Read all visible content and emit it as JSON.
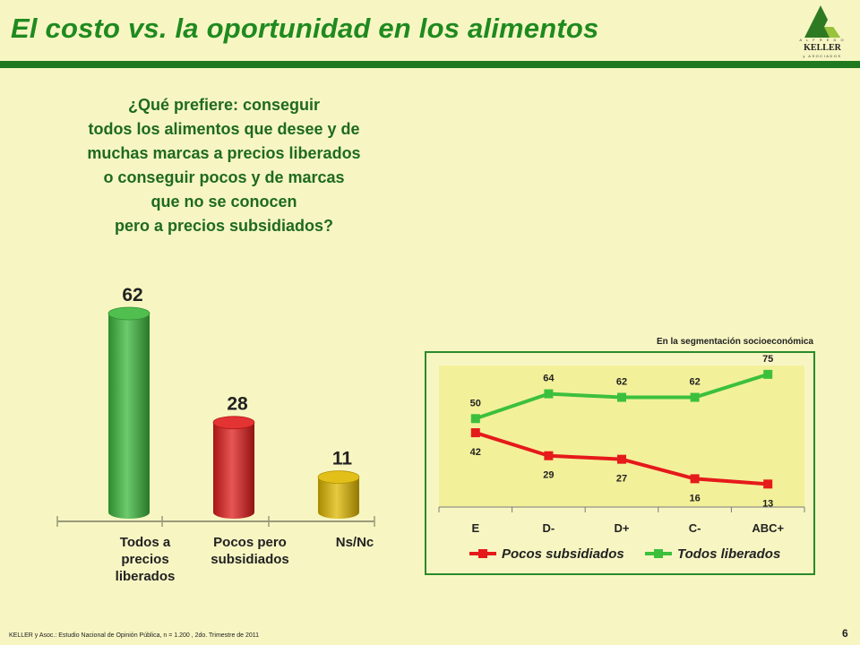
{
  "header": {
    "title": "El costo vs. la oportunidad en los alimentos",
    "logo": {
      "top": "A L F R E D O",
      "name": "KELLER",
      "sub": "y ASOCIADOS"
    }
  },
  "question": {
    "lines": [
      "¿Qué prefiere: conseguir",
      "todos los alimentos que desee y de",
      "muchas marcas a precios liberados",
      "o conseguir pocos y de marcas",
      "que no se conocen",
      "pero a precios subsidiados?"
    ]
  },
  "chart_data": [
    {
      "type": "bar",
      "categories": [
        [
          "Todos a",
          "precios",
          "liberados"
        ],
        [
          "Pocos pero",
          "subsidiados"
        ],
        [
          "Ns/Nc"
        ]
      ],
      "values": [
        62,
        28,
        11
      ],
      "colors": [
        "#3cb83c",
        "#e01c1c",
        "#e0b800"
      ],
      "ylim": [
        0,
        62
      ]
    },
    {
      "type": "line",
      "caption": "En la segmentación socioeconómica",
      "categories": [
        "E",
        "D-",
        "D+",
        "C-",
        "ABC+"
      ],
      "series": [
        {
          "name": "Pocos subsidiados",
          "values": [
            42,
            29,
            27,
            16,
            13
          ],
          "color": "#e51a1a"
        },
        {
          "name": "Todos liberados",
          "values": [
            50,
            64,
            62,
            62,
            75
          ],
          "color": "#3cc03c"
        }
      ],
      "ylim": [
        0,
        80
      ],
      "plot_background": "#f3f09a"
    }
  ],
  "footer": {
    "source": "KELLER y Asoc.: Estudio Nacional de Opinión Pública, n = 1.200 , 2do. Trimestre de 2011",
    "page": "6"
  }
}
